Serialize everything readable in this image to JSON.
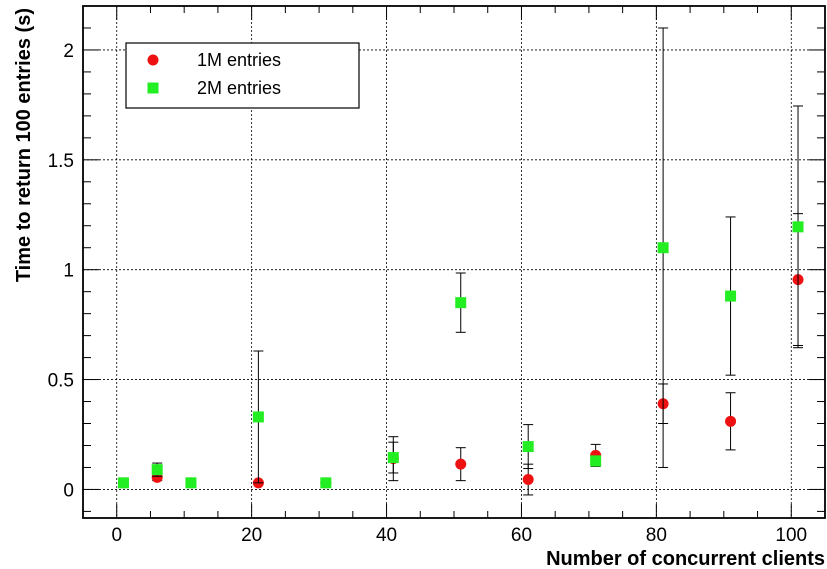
{
  "chart_data": {
    "type": "scatter",
    "title": "",
    "xlabel": "Number of concurrent clients",
    "ylabel": "Time to return 100 entries (s)",
    "xlim": [
      -5,
      105
    ],
    "ylim": [
      -0.13,
      2.2
    ],
    "x_ticks": [
      0,
      20,
      40,
      60,
      80,
      100
    ],
    "y_ticks": [
      0,
      0.5,
      1,
      1.5,
      2
    ],
    "x_tick_labels": [
      "0",
      "20",
      "40",
      "60",
      "80",
      "100"
    ],
    "y_tick_labels": [
      "0",
      "0.5",
      "1",
      "1.5",
      "2"
    ],
    "grid": true,
    "legend_position": "top-left",
    "series": [
      {
        "name": "1M entries",
        "marker": "circle",
        "color": "#ee1111",
        "points": [
          {
            "x": 1,
            "y": 0.03,
            "err": 0
          },
          {
            "x": 6,
            "y": 0.055,
            "err": 0.015
          },
          {
            "x": 11,
            "y": 0.03,
            "err": 0
          },
          {
            "x": 21,
            "y": 0.03,
            "err": 0
          },
          {
            "x": 31,
            "y": 0.03,
            "err": 0
          },
          {
            "x": 41,
            "y": 0.14,
            "err": 0.1
          },
          {
            "x": 51,
            "y": 0.115,
            "err": 0.075
          },
          {
            "x": 61,
            "y": 0.045,
            "err": 0.07
          },
          {
            "x": 71,
            "y": 0.155,
            "err": 0.05
          },
          {
            "x": 81,
            "y": 0.39,
            "err": 0.09
          },
          {
            "x": 91,
            "y": 0.31,
            "err": 0.13
          },
          {
            "x": 101,
            "y": 0.955,
            "err": 0.3
          }
        ]
      },
      {
        "name": "2M entries",
        "marker": "square",
        "color": "#22ee22",
        "points": [
          {
            "x": 1,
            "y": 0.03,
            "err": 0
          },
          {
            "x": 6,
            "y": 0.09,
            "err": 0.03
          },
          {
            "x": 11,
            "y": 0.03,
            "err": 0
          },
          {
            "x": 21,
            "y": 0.33,
            "err": 0.3
          },
          {
            "x": 31,
            "y": 0.03,
            "err": 0
          },
          {
            "x": 41,
            "y": 0.145,
            "err": 0.07
          },
          {
            "x": 51,
            "y": 0.85,
            "err": 0.135
          },
          {
            "x": 61,
            "y": 0.195,
            "err": 0.1
          },
          {
            "x": 71,
            "y": 0.13,
            "err": 0.02
          },
          {
            "x": 81,
            "y": 1.1,
            "err": 1.0
          },
          {
            "x": 91,
            "y": 0.88,
            "err": 0.36
          },
          {
            "x": 101,
            "y": 1.195,
            "err": 0.55
          }
        ]
      }
    ]
  }
}
